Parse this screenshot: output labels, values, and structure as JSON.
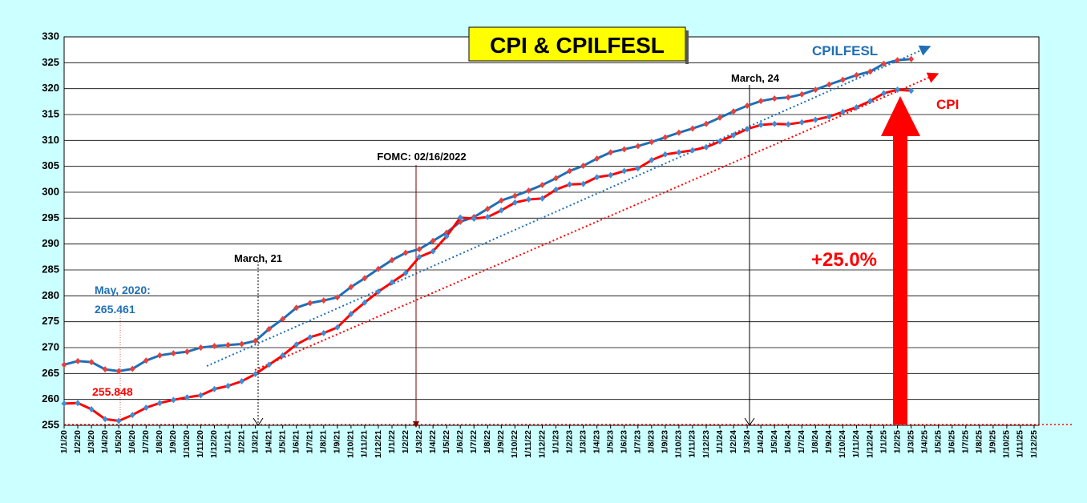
{
  "chart_data": {
    "type": "line",
    "title": "CPI & CPILFESL",
    "categories": [
      "1/1/20",
      "1/2/20",
      "1/3/20",
      "1/4/20",
      "1/5/20",
      "1/6/20",
      "1/7/20",
      "1/8/20",
      "1/9/20",
      "1/10/20",
      "1/11/20",
      "1/12/20",
      "1/1/21",
      "1/2/21",
      "1/3/21",
      "1/4/21",
      "1/5/21",
      "1/6/21",
      "1/7/21",
      "1/8/21",
      "1/9/21",
      "1/10/21",
      "1/11/21",
      "1/12/21",
      "1/1/22",
      "1/2/22",
      "1/3/22",
      "1/4/22",
      "1/5/22",
      "1/6/22",
      "1/7/22",
      "1/8/22",
      "1/9/22",
      "1/10/22",
      "1/11/22",
      "1/12/22",
      "1/1/23",
      "1/2/23",
      "1/3/23",
      "1/4/23",
      "1/5/23",
      "1/6/23",
      "1/7/23",
      "1/8/23",
      "1/9/23",
      "1/10/23",
      "1/11/23",
      "1/12/23",
      "1/1/24",
      "1/2/24",
      "1/3/24",
      "1/4/24",
      "1/5/24",
      "1/6/24",
      "1/7/24",
      "1/8/24",
      "1/9/24",
      "1/10/24",
      "1/11/24",
      "1/12/24",
      "1/1/25",
      "1/2/25",
      "1/3/25",
      "1/4/25",
      "1/5/25",
      "1/6/25",
      "1/7/25",
      "1/8/25",
      "1/9/25",
      "1/10/25",
      "1/11/25",
      "1/12/25"
    ],
    "series": [
      {
        "name": "CPILFESL",
        "color": "#1f6fb5",
        "marker_color": "#e8403a",
        "values": [
          266.7,
          267.4,
          267.2,
          265.8,
          265.461,
          265.9,
          267.5,
          268.5,
          268.9,
          269.2,
          270.0,
          270.3,
          270.5,
          270.7,
          271.3,
          273.6,
          275.5,
          277.7,
          278.6,
          279.1,
          279.7,
          281.7,
          283.4,
          285.2,
          286.9,
          288.3,
          289.0,
          290.6,
          292.2,
          294.3,
          295.2,
          296.8,
          298.4,
          299.3,
          300.3,
          301.4,
          302.7,
          304.1,
          305.1,
          306.5,
          307.7,
          308.3,
          308.9,
          309.7,
          310.6,
          311.5,
          312.3,
          313.2,
          314.4,
          315.6,
          316.7,
          317.6,
          318.1,
          318.3,
          318.9,
          319.8,
          320.8,
          321.7,
          322.6,
          323.3,
          324.8,
          325.5,
          325.7,
          null,
          null,
          null,
          null,
          null,
          null,
          null,
          null,
          null
        ]
      },
      {
        "name": "CPI",
        "color": "#ff0000",
        "marker_color": "#3a8fd8",
        "values": [
          259.2,
          259.3,
          258.1,
          256.2,
          255.848,
          257.0,
          258.4,
          259.3,
          259.9,
          260.4,
          260.8,
          262.0,
          262.6,
          263.5,
          264.9,
          266.7,
          268.5,
          270.6,
          272.0,
          272.8,
          273.9,
          276.5,
          278.7,
          280.8,
          282.6,
          284.4,
          287.5,
          288.6,
          291.5,
          295.1,
          294.9,
          295.2,
          296.5,
          298.0,
          298.6,
          298.8,
          300.5,
          301.5,
          301.6,
          302.9,
          303.3,
          304.1,
          304.6,
          306.2,
          307.3,
          307.7,
          308.1,
          308.7,
          309.8,
          311.0,
          312.2,
          313.0,
          313.2,
          313.1,
          313.5,
          314.0,
          314.6,
          315.5,
          316.4,
          317.6,
          319.1,
          319.8,
          319.6,
          null,
          null,
          null,
          null,
          null,
          null,
          null,
          null,
          null
        ]
      }
    ],
    "ylim": [
      255,
      330
    ],
    "yticks": [
      255,
      260,
      265,
      270,
      275,
      280,
      285,
      290,
      295,
      300,
      305,
      310,
      315,
      320,
      325,
      330
    ],
    "grid": true,
    "annotations": [
      "March, 21",
      "FOMC: 02/16/2022",
      "March, 24",
      "May, 2020:",
      "265.461",
      "255.848",
      "+25.0%"
    ]
  }
}
